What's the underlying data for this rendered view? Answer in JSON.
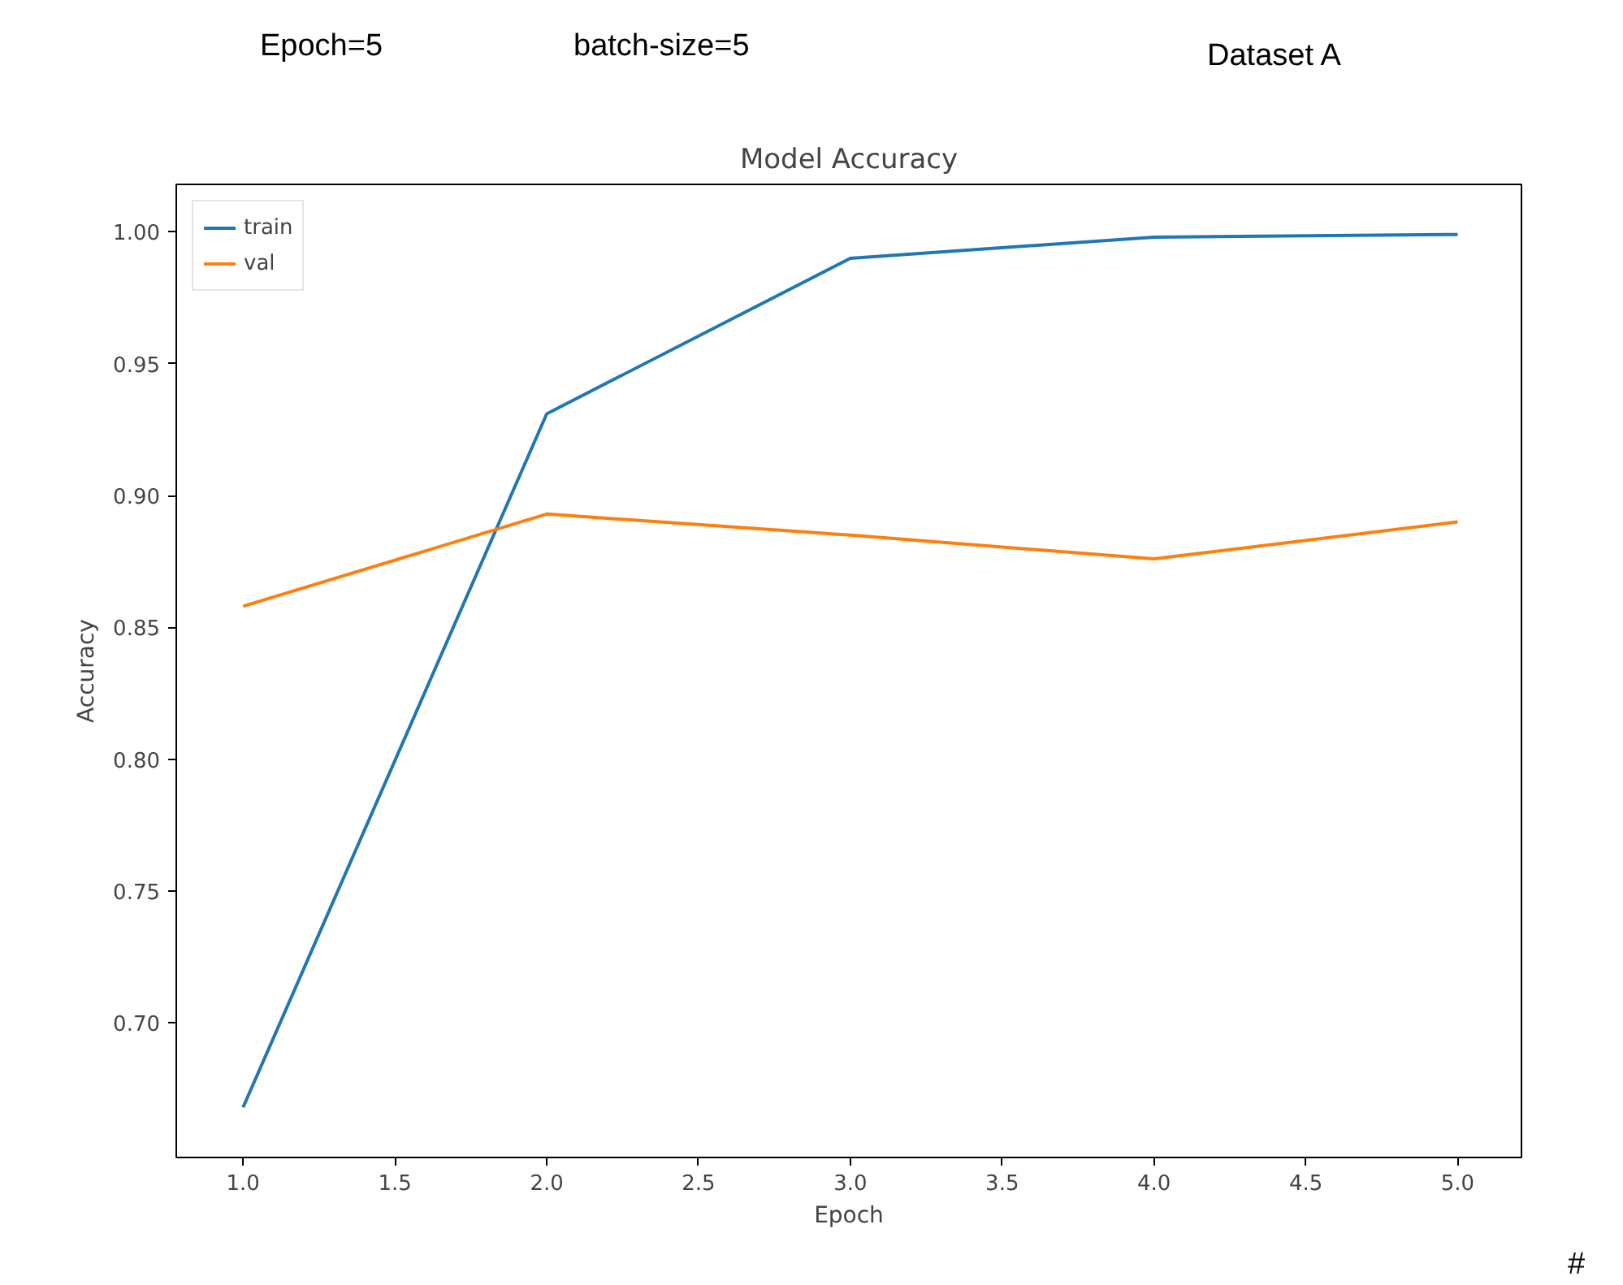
{
  "chart_data": {
    "type": "line",
    "title": "Model Accuracy",
    "xlabel": "Epoch",
    "ylabel": "Accuracy",
    "x": [
      1,
      2,
      3,
      4,
      5
    ],
    "series": [
      {
        "name": "train",
        "color": "#1f77b4",
        "values": [
          0.668,
          0.931,
          0.99,
          0.998,
          0.999
        ]
      },
      {
        "name": "val",
        "color": "#ff7f0e",
        "values": [
          0.858,
          0.893,
          0.885,
          0.876,
          0.89
        ]
      }
    ],
    "xlim": [
      0.78,
      5.21
    ],
    "ylim": [
      0.649,
      1.018
    ],
    "xticks": [
      {
        "value": 1,
        "label": "1.0"
      },
      {
        "value": 1.5,
        "label": "1.5"
      },
      {
        "value": 2,
        "label": "2.0"
      },
      {
        "value": 2.5,
        "label": "2.5"
      },
      {
        "value": 3,
        "label": "3.0"
      },
      {
        "value": 3.5,
        "label": "3.5"
      },
      {
        "value": 4,
        "label": "4.0"
      },
      {
        "value": 4.5,
        "label": "4.5"
      },
      {
        "value": 5,
        "label": "5.0"
      }
    ],
    "yticks": [
      {
        "value": 0.7,
        "label": "0.70"
      },
      {
        "value": 0.75,
        "label": "0.75"
      },
      {
        "value": 0.8,
        "label": "0.80"
      },
      {
        "value": 0.85,
        "label": "0.85"
      },
      {
        "value": 0.9,
        "label": "0.90"
      },
      {
        "value": 0.95,
        "label": "0.95"
      },
      {
        "value": 1.0,
        "label": "1.00"
      }
    ],
    "grid": false,
    "legend": "top left",
    "marker": "none",
    "line_style": "solid",
    "annotations": [
      "Epoch=5",
      "batch-size=5",
      "Dataset A",
      "#"
    ]
  }
}
